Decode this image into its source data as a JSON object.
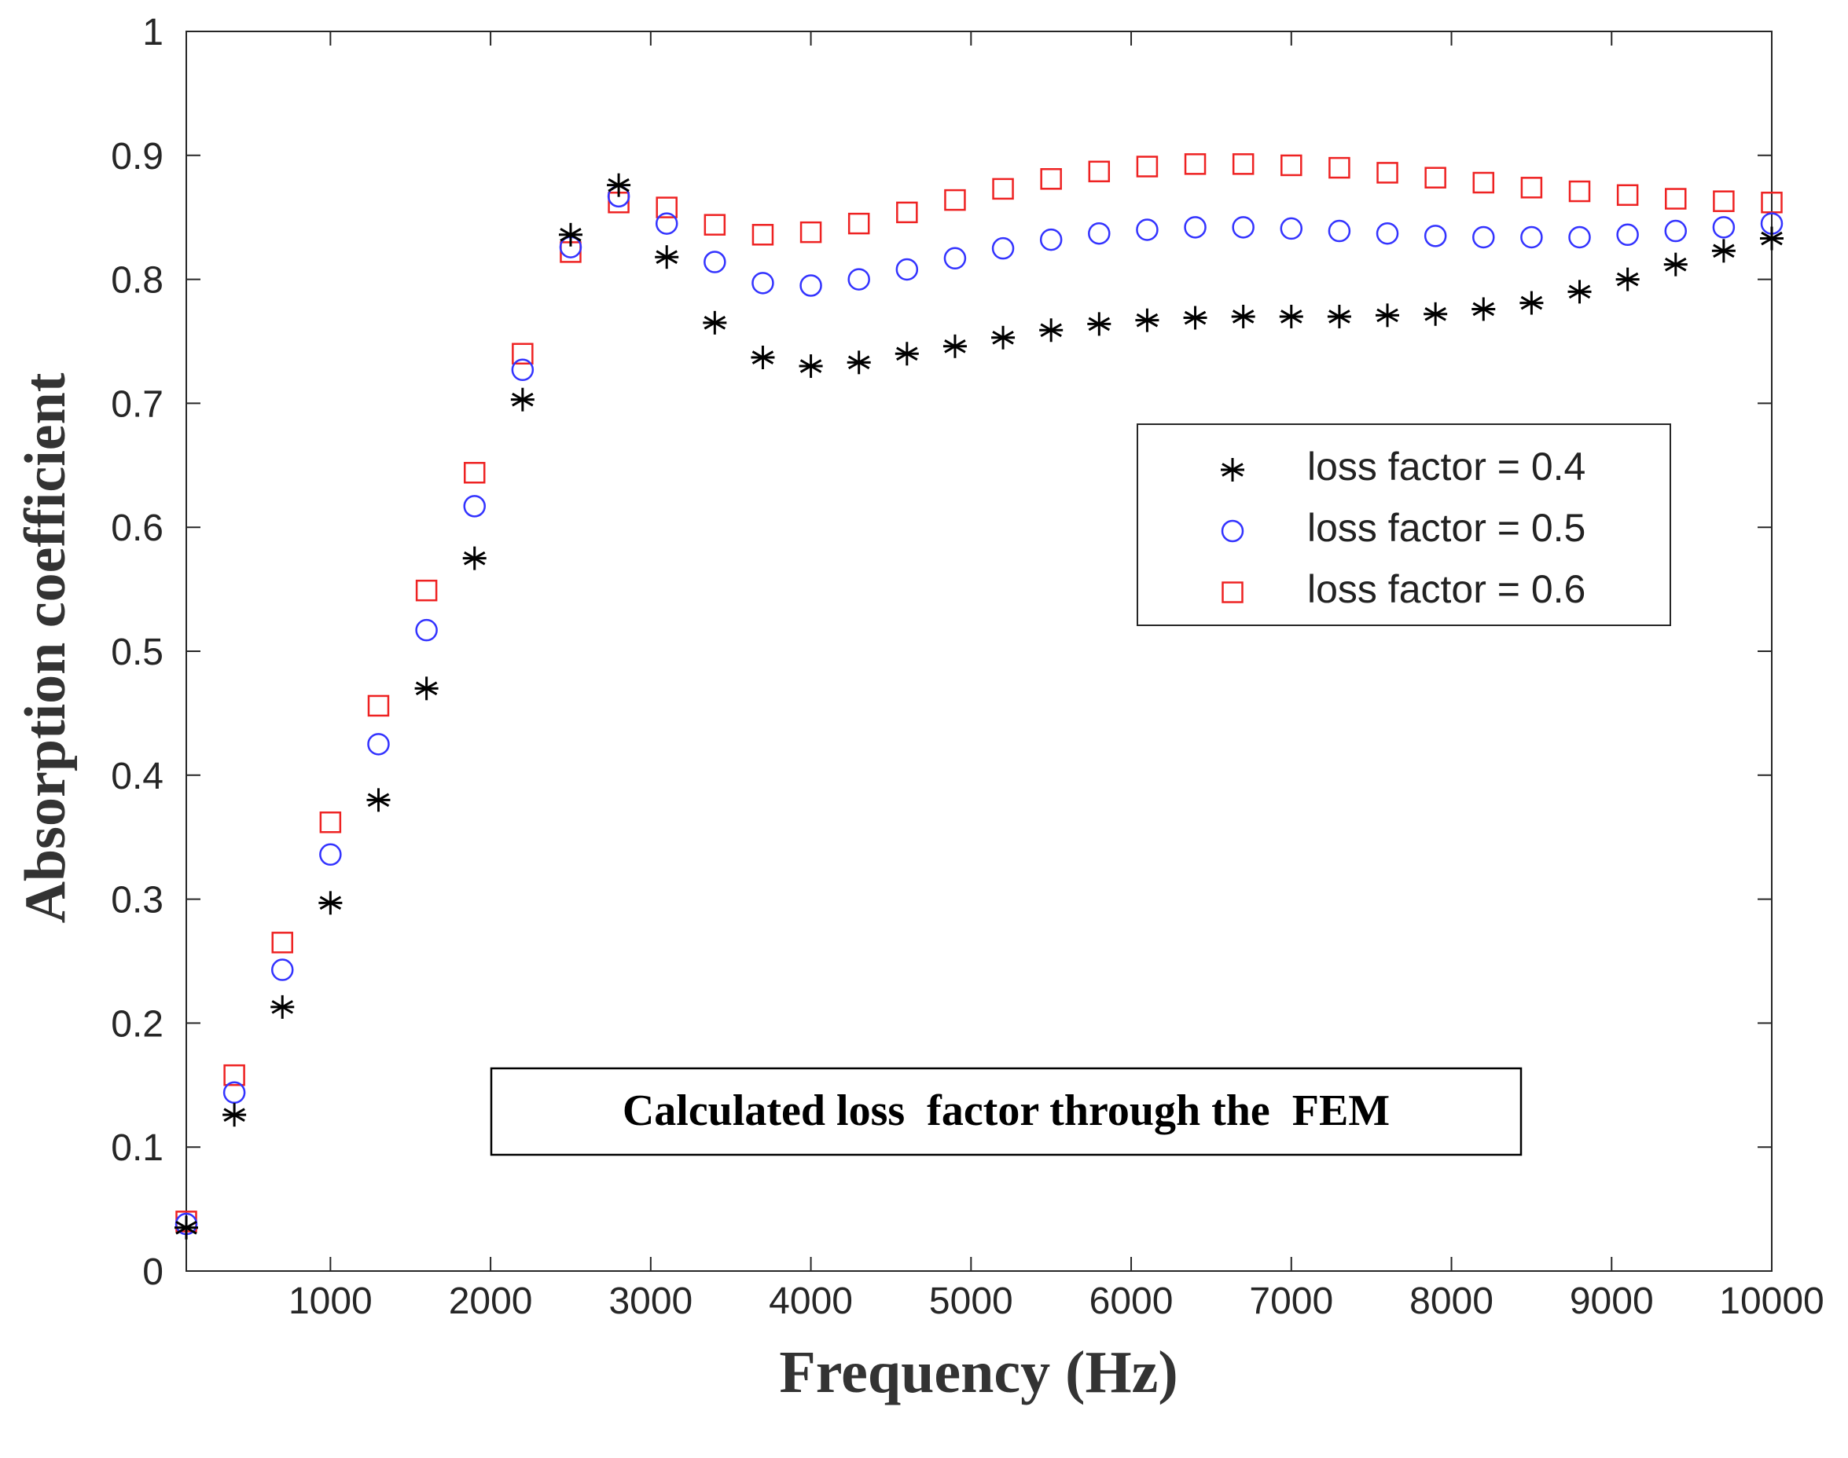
{
  "chart_data": {
    "type": "scatter",
    "title": "",
    "xlabel": "Frequency (Hz)",
    "ylabel": "Absorption coefficient",
    "xlim": [
      100,
      10000
    ],
    "ylim": [
      0,
      1
    ],
    "xticks": [
      1000,
      2000,
      3000,
      4000,
      5000,
      6000,
      7000,
      8000,
      9000,
      10000
    ],
    "xtick_labels": [
      "1000",
      "2000",
      "3000",
      "4000",
      "5000",
      "6000",
      "7000",
      "8000",
      "9000",
      "10000"
    ],
    "yticks": [
      0,
      0.1,
      0.2,
      0.3,
      0.4,
      0.5,
      0.6,
      0.7,
      0.8,
      0.9,
      1
    ],
    "ytick_labels": [
      "0",
      "0.1",
      "0.2",
      "0.3",
      "0.4",
      "0.5",
      "0.6",
      "0.7",
      "0.8",
      "0.9",
      "1"
    ],
    "grid": false,
    "legend_position": "upper-right",
    "annotation": "Calculated loss  factor through the  FEM",
    "x": [
      100,
      400,
      700,
      1000,
      1300,
      1600,
      1900,
      2200,
      2500,
      2800,
      3100,
      3400,
      3700,
      4000,
      4300,
      4600,
      4900,
      5200,
      5500,
      5800,
      6100,
      6400,
      6700,
      7000,
      7300,
      7600,
      7900,
      8200,
      8500,
      8800,
      9100,
      9400,
      9700,
      10000
    ],
    "series": [
      {
        "name": "loss factor = 0.4",
        "marker": "asterisk",
        "color": "#000000",
        "values": [
          0.035,
          0.126,
          0.213,
          0.297,
          0.38,
          0.47,
          0.575,
          0.703,
          0.836,
          0.876,
          0.818,
          0.765,
          0.737,
          0.73,
          0.733,
          0.74,
          0.746,
          0.753,
          0.759,
          0.764,
          0.767,
          0.769,
          0.77,
          0.77,
          0.77,
          0.771,
          0.772,
          0.776,
          0.781,
          0.79,
          0.8,
          0.812,
          0.823,
          0.833
        ]
      },
      {
        "name": "loss factor = 0.5",
        "marker": "circle",
        "color": "#3333ff",
        "values": [
          0.038,
          0.144,
          0.243,
          0.336,
          0.425,
          0.517,
          0.617,
          0.727,
          0.826,
          0.867,
          0.845,
          0.814,
          0.797,
          0.795,
          0.8,
          0.808,
          0.817,
          0.825,
          0.832,
          0.837,
          0.84,
          0.842,
          0.842,
          0.841,
          0.839,
          0.837,
          0.835,
          0.834,
          0.834,
          0.834,
          0.836,
          0.839,
          0.842,
          0.845
        ]
      },
      {
        "name": "loss factor = 0.6",
        "marker": "square",
        "color": "#ee2222",
        "values": [
          0.04,
          0.158,
          0.265,
          0.362,
          0.456,
          0.549,
          0.644,
          0.74,
          0.822,
          0.862,
          0.858,
          0.844,
          0.836,
          0.838,
          0.845,
          0.854,
          0.864,
          0.873,
          0.881,
          0.887,
          0.891,
          0.893,
          0.893,
          0.892,
          0.89,
          0.886,
          0.882,
          0.878,
          0.874,
          0.871,
          0.868,
          0.865,
          0.863,
          0.862
        ]
      }
    ]
  }
}
